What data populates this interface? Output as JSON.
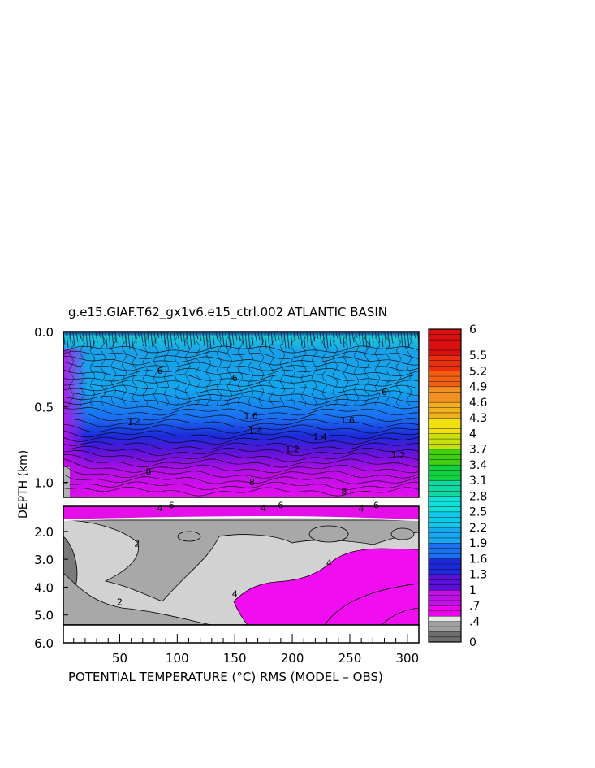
{
  "chart_data": {
    "type": "heatmap",
    "title": "g.e15.GIAF.T62_gx1v6.e15_ctrl.002 ATLANTIC BASIN",
    "xlabel": "POTENTIAL TEMPERATURE (°C) RMS (MODEL – OBS)",
    "ylabel": "DEPTH (km)",
    "x_ticks": [
      "50",
      "100",
      "150",
      "200",
      "250",
      "300"
    ],
    "x_tick_values": [
      50,
      100,
      150,
      200,
      250,
      300
    ],
    "xlim": [
      1,
      310
    ],
    "upper_panel": {
      "y_ticks": [
        "0.0",
        "0.5",
        "1.0"
      ],
      "y_tick_values": [
        0.0,
        0.5,
        1.0
      ],
      "ylim": [
        0.0,
        1.1
      ]
    },
    "lower_panel": {
      "y_ticks": [
        "2.0",
        "3.0",
        "4.0",
        "5.0",
        "6.0"
      ],
      "y_tick_values": [
        2.0,
        3.0,
        4.0,
        5.0,
        6.0
      ],
      "ylim": [
        1.1,
        6.0
      ]
    },
    "colorbar": {
      "ticks": [
        "6",
        "5.5",
        "5.2",
        "4.9",
        "4.6",
        "4.3",
        "4",
        "3.7",
        "3.4",
        "3.1",
        "2.8",
        "2.5",
        "2.2",
        "1.9",
        "1.6",
        "1.3",
        "1",
        ".7",
        ".4",
        "0"
      ],
      "tick_values": [
        6,
        5.5,
        5.2,
        4.9,
        4.6,
        4.3,
        4,
        3.7,
        3.4,
        3.1,
        2.8,
        2.5,
        2.2,
        1.9,
        1.6,
        1.3,
        1,
        0.7,
        0.4,
        0
      ],
      "min": 0,
      "max": 6
    },
    "contour_labels": [
      {
        "text": "6",
        "x": 85,
        "depth": 0.28
      },
      {
        "text": "6",
        "x": 150,
        "depth": 0.33
      },
      {
        "text": "6",
        "x": 280,
        "depth": 0.42
      },
      {
        "text": "1.4",
        "x": 63,
        "depth": 0.62
      },
      {
        "text": "1.6",
        "x": 164,
        "depth": 0.58
      },
      {
        "text": "1.6",
        "x": 248,
        "depth": 0.61
      },
      {
        "text": "1.4",
        "x": 168,
        "depth": 0.68
      },
      {
        "text": "1.4",
        "x": 224,
        "depth": 0.72
      },
      {
        "text": "1.2",
        "x": 200,
        "depth": 0.8
      },
      {
        "text": "1.2",
        "x": 292,
        "depth": 0.84
      },
      {
        "text": "8",
        "x": 75,
        "depth": 0.95
      },
      {
        "text": "8",
        "x": 165,
        "depth": 1.02
      },
      {
        "text": "8",
        "x": 245,
        "depth": 1.08
      },
      {
        "text": "6",
        "x": 95,
        "depth": 1.17
      },
      {
        "text": "6",
        "x": 190,
        "depth": 1.17
      },
      {
        "text": "6",
        "x": 273,
        "depth": 1.17
      },
      {
        "text": "4",
        "x": 85,
        "depth": 1.27
      },
      {
        "text": "4",
        "x": 175,
        "depth": 1.27
      },
      {
        "text": "4",
        "x": 260,
        "depth": 1.29
      },
      {
        "text": "2",
        "x": 65,
        "depth": 2.55
      },
      {
        "text": "2",
        "x": 50,
        "depth": 4.65
      },
      {
        "text": "4",
        "x": 232,
        "depth": 3.25
      },
      {
        "text": "4",
        "x": 150,
        "depth": 4.35
      }
    ]
  }
}
